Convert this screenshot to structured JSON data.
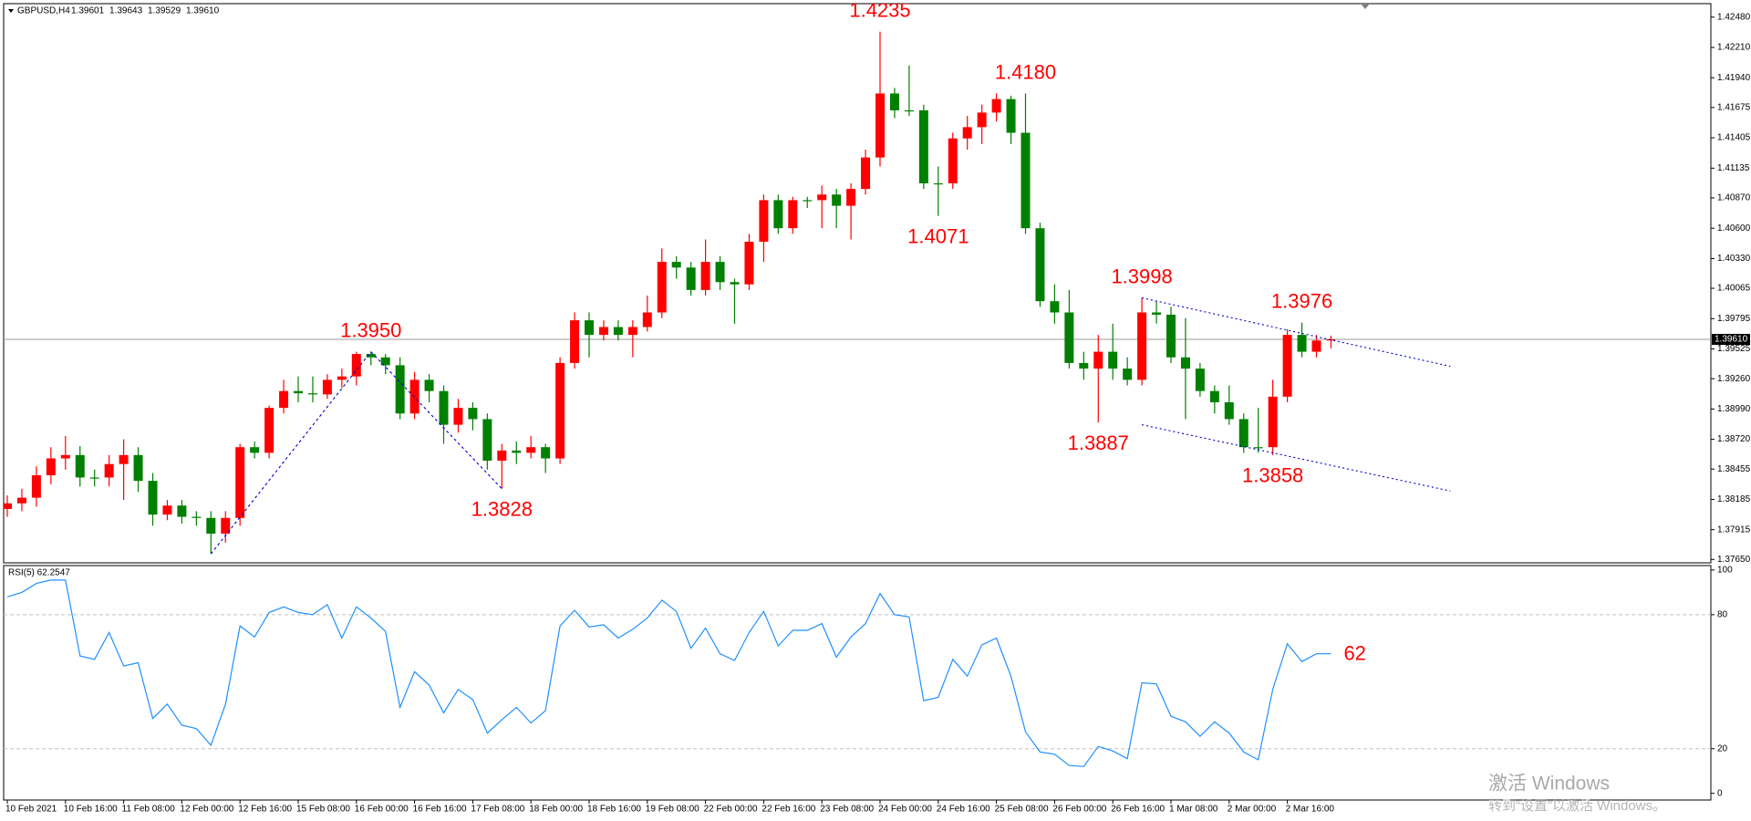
{
  "chart_data": [
    {
      "type": "candlestick",
      "symbol": "GBPUSD,H4",
      "header_values": [
        "1.39601",
        "1.39643",
        "1.39529",
        "1.39610"
      ],
      "open": [
        1.381,
        1.3815,
        1.382,
        1.384,
        1.3855,
        1.3858,
        1.3838,
        1.3838,
        1.385,
        1.3858,
        1.3835,
        1.3805,
        1.3813,
        1.3803,
        1.3802,
        1.3788,
        1.3802,
        1.3865,
        1.386,
        1.39,
        1.3915,
        1.3913,
        1.3912,
        1.3925,
        1.3928,
        1.3948,
        1.3945,
        1.3938,
        1.3895,
        1.3925,
        1.3915,
        1.3885,
        1.39,
        1.389,
        1.3853,
        1.3862,
        1.386,
        1.3865,
        1.3855,
        1.394,
        1.3978,
        1.3965,
        1.3972,
        1.3965,
        1.3972,
        1.3985,
        1.403,
        1.4025,
        1.4005,
        1.403,
        1.4012,
        1.401,
        1.4048,
        1.4085,
        1.406,
        1.4085,
        1.4085,
        1.409,
        1.408,
        1.4095,
        1.4123,
        1.418,
        1.4165,
        1.4165,
        1.41,
        1.41,
        1.414,
        1.415,
        1.4163,
        1.4175,
        1.4145,
        1.406,
        1.3995,
        1.3985,
        1.394,
        1.3935,
        1.395,
        1.3935,
        1.3925,
        1.3985,
        1.3983,
        1.3945,
        1.3935,
        1.3915,
        1.3905,
        1.389,
        1.3865,
        1.3865,
        1.391,
        1.3965,
        1.395,
        1.39601
      ],
      "high": [
        1.3822,
        1.3828,
        1.3848,
        1.3865,
        1.3875,
        1.3866,
        1.3845,
        1.3858,
        1.3872,
        1.3865,
        1.3842,
        1.3818,
        1.3818,
        1.3808,
        1.3808,
        1.3808,
        1.3868,
        1.387,
        1.3902,
        1.3925,
        1.3928,
        1.3928,
        1.393,
        1.3935,
        1.395,
        1.395,
        1.3948,
        1.3945,
        1.3932,
        1.393,
        1.392,
        1.3908,
        1.3905,
        1.3895,
        1.3868,
        1.387,
        1.3875,
        1.3868,
        1.3945,
        1.3985,
        1.3985,
        1.3978,
        1.3978,
        1.3978,
        1.4,
        1.4042,
        1.4035,
        1.403,
        1.405,
        1.4035,
        1.4015,
        1.4055,
        1.409,
        1.409,
        1.4088,
        1.4088,
        1.4098,
        1.4095,
        1.41,
        1.413,
        1.4235,
        1.4185,
        1.4205,
        1.417,
        1.4115,
        1.4145,
        1.416,
        1.417,
        1.418,
        1.4178,
        1.418,
        1.4065,
        1.401,
        1.4005,
        1.395,
        1.3965,
        1.3975,
        1.3945,
        1.3998,
        1.3995,
        1.399,
        1.398,
        1.394,
        1.392,
        1.392,
        1.3895,
        1.39,
        1.3925,
        1.397,
        1.3976,
        1.3965,
        1.39643
      ],
      "low": [
        1.3803,
        1.3808,
        1.3812,
        1.3832,
        1.3845,
        1.383,
        1.383,
        1.383,
        1.3818,
        1.3825,
        1.3795,
        1.38,
        1.3797,
        1.3795,
        1.377,
        1.378,
        1.3795,
        1.3855,
        1.3855,
        1.3895,
        1.3905,
        1.3905,
        1.3908,
        1.3918,
        1.392,
        1.3938,
        1.393,
        1.389,
        1.389,
        1.3905,
        1.3868,
        1.3878,
        1.388,
        1.3845,
        1.3828,
        1.385,
        1.3855,
        1.3842,
        1.385,
        1.3935,
        1.3945,
        1.396,
        1.396,
        1.3945,
        1.3968,
        1.398,
        1.4015,
        1.4,
        1.4,
        1.4005,
        1.3975,
        1.4005,
        1.403,
        1.4055,
        1.4055,
        1.4078,
        1.406,
        1.406,
        1.405,
        1.409,
        1.4115,
        1.4158,
        1.416,
        1.4095,
        1.4071,
        1.4095,
        1.413,
        1.4135,
        1.4155,
        1.4135,
        1.4055,
        1.399,
        1.3975,
        1.3935,
        1.3925,
        1.3887,
        1.3925,
        1.392,
        1.392,
        1.3975,
        1.394,
        1.389,
        1.391,
        1.3895,
        1.3885,
        1.386,
        1.386,
        1.3858,
        1.3905,
        1.3945,
        1.3945,
        1.39529
      ],
      "close": [
        1.3815,
        1.382,
        1.384,
        1.3855,
        1.3858,
        1.3838,
        1.3838,
        1.385,
        1.3858,
        1.3835,
        1.3805,
        1.3813,
        1.3803,
        1.3802,
        1.3788,
        1.3802,
        1.3865,
        1.386,
        1.39,
        1.3915,
        1.3913,
        1.3912,
        1.3925,
        1.3928,
        1.3948,
        1.3945,
        1.3938,
        1.3895,
        1.3925,
        1.3915,
        1.3885,
        1.39,
        1.389,
        1.3853,
        1.3862,
        1.386,
        1.3865,
        1.3855,
        1.394,
        1.3978,
        1.3965,
        1.3972,
        1.3965,
        1.3972,
        1.3985,
        1.403,
        1.4025,
        1.4005,
        1.403,
        1.4012,
        1.401,
        1.4048,
        1.4085,
        1.406,
        1.4085,
        1.4085,
        1.409,
        1.408,
        1.4095,
        1.4123,
        1.418,
        1.4165,
        1.4165,
        1.41,
        1.41,
        1.414,
        1.415,
        1.4163,
        1.4175,
        1.4145,
        1.406,
        1.3995,
        1.3985,
        1.394,
        1.3935,
        1.395,
        1.3935,
        1.3925,
        1.3985,
        1.3983,
        1.3945,
        1.3935,
        1.3915,
        1.3905,
        1.389,
        1.3865,
        1.3865,
        1.391,
        1.3965,
        1.395,
        1.396,
        1.3961
      ],
      "up_color": "#ff0000",
      "down_color": "#008000",
      "ylim": [
        1.3762,
        1.426
      ],
      "yticks": [
        {
          "value": 1.4248,
          "label": "1.42480"
        },
        {
          "value": 1.4221,
          "label": "1.42210"
        },
        {
          "value": 1.4194,
          "label": "1.41940"
        },
        {
          "value": 1.41675,
          "label": "1.41675"
        },
        {
          "value": 1.41405,
          "label": "1.41405"
        },
        {
          "value": 1.41135,
          "label": "1.41135"
        },
        {
          "value": 1.4087,
          "label": "1.40870"
        },
        {
          "value": 1.406,
          "label": "1.40600"
        },
        {
          "value": 1.4033,
          "label": "1.40330"
        },
        {
          "value": 1.40065,
          "label": "1.40065"
        },
        {
          "value": 1.39795,
          "label": "1.39795"
        },
        {
          "value": 1.39525,
          "label": "1.39525"
        },
        {
          "value": 1.3926,
          "label": "1.39260"
        },
        {
          "value": 1.3899,
          "label": "1.38990"
        },
        {
          "value": 1.3872,
          "label": "1.38720"
        },
        {
          "value": 1.38455,
          "label": "1.38455"
        },
        {
          "value": 1.38185,
          "label": "1.38185"
        },
        {
          "value": 1.37915,
          "label": "1.37915"
        },
        {
          "value": 1.3765,
          "label": "1.37650"
        }
      ],
      "last_price": {
        "value": 1.3961,
        "label": "1.39610"
      },
      "xticks": [
        {
          "value": 0,
          "label": "10 Feb 2021"
        },
        {
          "value": 4,
          "label": "10 Feb 16:00"
        },
        {
          "value": 8,
          "label": "11 Feb 08:00"
        },
        {
          "value": 12,
          "label": "12 Feb 00:00"
        },
        {
          "value": 16,
          "label": "12 Feb 16:00"
        },
        {
          "value": 20,
          "label": "15 Feb 08:00"
        },
        {
          "value": 24,
          "label": "16 Feb 00:00"
        },
        {
          "value": 28,
          "label": "16 Feb 16:00"
        },
        {
          "value": 32,
          "label": "17 Feb 08:00"
        },
        {
          "value": 36,
          "label": "18 Feb 00:00"
        },
        {
          "value": 40,
          "label": "18 Feb 16:00"
        },
        {
          "value": 44,
          "label": "19 Feb 08:00"
        },
        {
          "value": 48,
          "label": "22 Feb 00:00"
        },
        {
          "value": 52,
          "label": "22 Feb 16:00"
        },
        {
          "value": 56,
          "label": "23 Feb 08:00"
        },
        {
          "value": 60,
          "label": "24 Feb 00:00"
        },
        {
          "value": 64,
          "label": "24 Feb 16:00"
        },
        {
          "value": 68,
          "label": "25 Feb 08:00"
        },
        {
          "value": 72,
          "label": "26 Feb 00:00"
        },
        {
          "value": 76,
          "label": "26 Feb 16:00"
        },
        {
          "value": 80,
          "label": "1 Mar 08:00"
        },
        {
          "value": 84,
          "label": "2 Mar 00:00"
        },
        {
          "value": 88,
          "label": "2 Mar 16:00"
        }
      ],
      "annotations": [
        {
          "index": 25,
          "value": 1.395,
          "label": "1.3950"
        },
        {
          "index": 34,
          "value": 1.3828,
          "label": "1.3828"
        },
        {
          "index": 60,
          "value": 1.4235,
          "label": "1.4235"
        },
        {
          "index": 70,
          "value": 1.418,
          "label": "1.4180"
        },
        {
          "index": 64,
          "value": 1.4071,
          "label": "1.4071"
        },
        {
          "index": 78,
          "value": 1.3998,
          "label": "1.3998"
        },
        {
          "index": 75,
          "value": 1.3887,
          "label": "1.3887"
        },
        {
          "index": 89,
          "value": 1.3976,
          "label": "1.3976"
        },
        {
          "index": 87,
          "value": 1.3858,
          "label": "1.3858"
        }
      ],
      "trendlines": [
        {
          "style": "channel",
          "points": [
            [
              78,
              1.3998
            ],
            [
              99.2,
              1.3937
            ]
          ]
        },
        {
          "style": "channel",
          "points": [
            [
              78,
              1.3885
            ],
            [
              99.2,
              1.3826
            ]
          ]
        },
        {
          "style": "zigzag",
          "points": [
            [
              14,
              1.377
            ],
            [
              25,
              1.395
            ]
          ]
        },
        {
          "style": "zigzag",
          "points": [
            [
              25,
              1.395
            ],
            [
              34,
              1.3828
            ]
          ]
        }
      ],
      "trendline_color": "#0000cd"
    },
    {
      "type": "line",
      "title": "RSI(5) 62.2547",
      "values": [
        88,
        90,
        94,
        95.5,
        95.5,
        61.5,
        60,
        72,
        57,
        58.5,
        33.5,
        40,
        30.5,
        29,
        21.5,
        40,
        75,
        70,
        81,
        83.5,
        81,
        80,
        84.5,
        69.5,
        83.5,
        78.5,
        72.5,
        38.5,
        54.5,
        48.5,
        36,
        46.5,
        42,
        27,
        33,
        38.5,
        31.5,
        37,
        75,
        82,
        74.5,
        75.5,
        69.5,
        73.5,
        78.5,
        86.5,
        81.5,
        65,
        74,
        62.5,
        59.5,
        72,
        81.5,
        66,
        73,
        73,
        76,
        61,
        70,
        76,
        89.5,
        80,
        79,
        41.5,
        43,
        60,
        52.5,
        66.5,
        69.5,
        52.5,
        27.5,
        18.5,
        17.5,
        12.5,
        12,
        21,
        19,
        15.5,
        49.5,
        49,
        34.5,
        32,
        25.5,
        32,
        27,
        18.5,
        15,
        46.5,
        67,
        59,
        62.5,
        62.5
      ],
      "color": "#1e90ff",
      "ylim": [
        -3,
        102
      ],
      "yticks": [
        0,
        20,
        80,
        100
      ],
      "levels": [
        20,
        80
      ],
      "end_label": 62,
      "end_label_color": "#ff0000"
    }
  ],
  "watermark": {
    "title": "激活 Windows",
    "text": "转到“设置”以激活 Windows。"
  }
}
